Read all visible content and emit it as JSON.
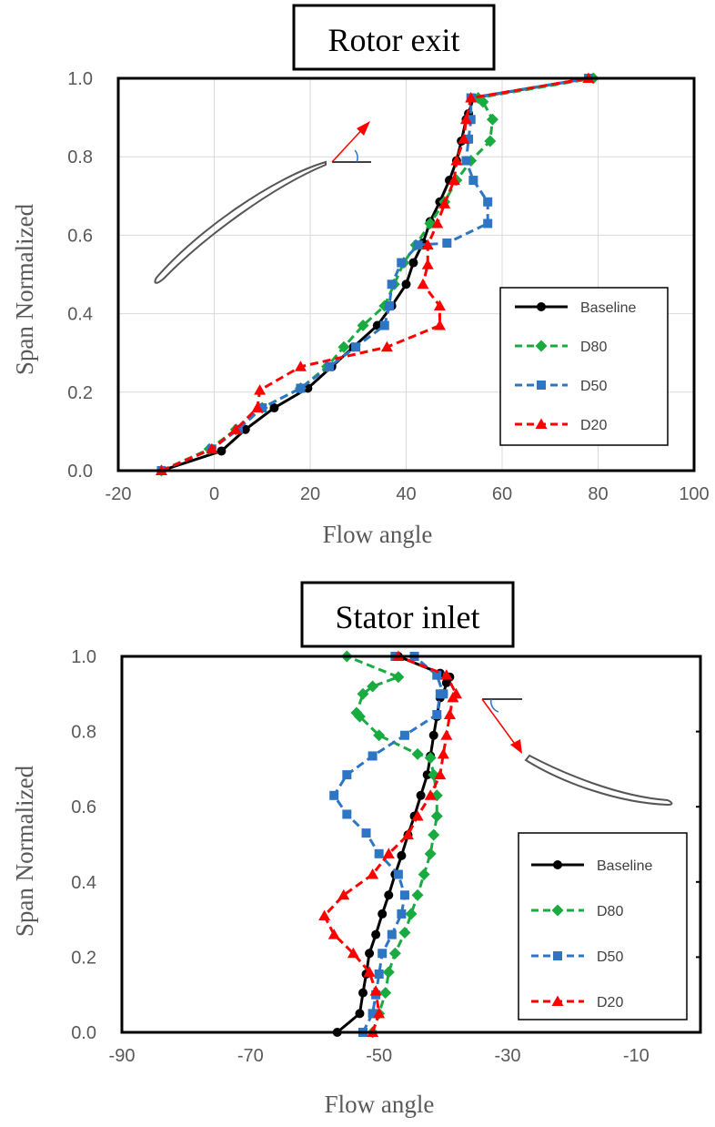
{
  "chart_data": [
    {
      "type": "line",
      "title": "Rotor exit",
      "xlabel": "Flow angle",
      "ylabel": "Span Normalized",
      "xlim": [
        -20,
        100
      ],
      "ylim": [
        0,
        1
      ],
      "xticks": [
        "-20",
        "0",
        "20",
        "40",
        "60",
        "80",
        "100"
      ],
      "yticks": [
        "0.0",
        "0.2",
        "0.4",
        "0.6",
        "0.8",
        "1.0"
      ],
      "xtick_values": [
        -20,
        0,
        20,
        40,
        60,
        80,
        100
      ],
      "ytick_values": [
        0,
        0.2,
        0.4,
        0.6,
        0.8,
        1.0
      ],
      "grid": true,
      "legend_position": "lower-right",
      "series": [
        {
          "name": "Baseline",
          "color": "#000000",
          "marker": "circle",
          "dash": "solid",
          "x": [
            -11,
            1.5,
            6.5,
            12.5,
            19.5,
            24.5,
            29,
            34,
            37,
            40,
            41.5,
            43.5,
            45,
            47,
            49,
            50.5,
            51.5,
            52.5,
            53,
            54,
            78
          ],
          "y": [
            0.0,
            0.05,
            0.105,
            0.16,
            0.21,
            0.265,
            0.315,
            0.37,
            0.42,
            0.475,
            0.53,
            0.58,
            0.635,
            0.685,
            0.74,
            0.79,
            0.84,
            0.895,
            0.91,
            0.95,
            1.0
          ]
        },
        {
          "name": "D80",
          "color": "#1aab40",
          "marker": "diamond",
          "dash": "dashed",
          "x": [
            -11,
            -1,
            4.5,
            10,
            18,
            23.5,
            27,
            31,
            35.5,
            37.5,
            39.5,
            42,
            45,
            48,
            50.5,
            53.5,
            57.5,
            58,
            56,
            55,
            79
          ],
          "y": [
            0.0,
            0.055,
            0.105,
            0.16,
            0.21,
            0.265,
            0.315,
            0.37,
            0.42,
            0.475,
            0.53,
            0.575,
            0.63,
            0.685,
            0.74,
            0.79,
            0.84,
            0.895,
            0.94,
            0.95,
            1.0
          ]
        },
        {
          "name": "D50",
          "color": "#2e75c4",
          "marker": "square",
          "dash": "dashed",
          "x": [
            -11,
            -0.5,
            5,
            10,
            18,
            24,
            29.5,
            35.5,
            36.5,
            37,
            39,
            42.5,
            48.5,
            57,
            57,
            54,
            52.5,
            53,
            53.5,
            53.5,
            78
          ],
          "y": [
            0.0,
            0.055,
            0.105,
            0.16,
            0.21,
            0.265,
            0.315,
            0.37,
            0.42,
            0.475,
            0.53,
            0.575,
            0.58,
            0.63,
            0.685,
            0.74,
            0.79,
            0.845,
            0.895,
            0.95,
            1.0
          ]
        },
        {
          "name": "D20",
          "color": "#ff0000",
          "marker": "triangle",
          "dash": "dashed",
          "x": [
            -11,
            -0.5,
            4.5,
            9,
            9.5,
            18,
            36,
            47,
            47,
            43.5,
            44.5,
            44.5,
            46.5,
            48,
            50,
            50.5,
            52,
            52.5,
            53.5,
            78
          ],
          "y": [
            0.0,
            0.055,
            0.105,
            0.16,
            0.205,
            0.265,
            0.315,
            0.37,
            0.42,
            0.475,
            0.525,
            0.575,
            0.63,
            0.68,
            0.74,
            0.79,
            0.845,
            0.895,
            0.95,
            1.0
          ]
        }
      ]
    },
    {
      "type": "line",
      "title": "Stator inlet",
      "xlabel": "Flow angle",
      "ylabel": "Span Normalized",
      "xlim": [
        -90,
        0
      ],
      "ylim": [
        0,
        1
      ],
      "xticks": [
        "-90",
        "-70",
        "-50",
        "-30",
        "-10"
      ],
      "yticks": [
        "0.0",
        "0.2",
        "0.4",
        "0.6",
        "0.8",
        "1.0"
      ],
      "xtick_values": [
        -90,
        -70,
        -50,
        -30,
        -10
      ],
      "ytick_values": [
        0,
        0.2,
        0.4,
        0.6,
        0.8,
        1.0
      ],
      "grid": false,
      "legend_position": "lower-right",
      "series": [
        {
          "name": "Baseline",
          "color": "#000000",
          "marker": "circle",
          "dash": "solid",
          "x": [
            -56.5,
            -53,
            -52.5,
            -52,
            -51.5,
            -50.5,
            -49.5,
            -48.5,
            -47.5,
            -46.5,
            -45.5,
            -44.5,
            -43.5,
            -42.5,
            -42,
            -41.5,
            -41,
            -40.5,
            -40,
            -39.5,
            -39,
            -40.5,
            -47
          ],
          "y": [
            0.0,
            0.05,
            0.105,
            0.155,
            0.21,
            0.26,
            0.315,
            0.365,
            0.42,
            0.47,
            0.525,
            0.575,
            0.63,
            0.685,
            0.735,
            0.79,
            0.84,
            0.89,
            0.9,
            0.93,
            0.945,
            0.955,
            1.0
          ]
        },
        {
          "name": "D80",
          "color": "#1aab40",
          "marker": "diamond",
          "dash": "dashed",
          "x": [
            -51,
            -50,
            -49,
            -48.5,
            -47.5,
            -46,
            -45,
            -44,
            -43,
            -42,
            -41.5,
            -41,
            -41,
            -41.5,
            -42,
            -44,
            -50,
            -53,
            -53.5,
            -52.5,
            -51,
            -47,
            -55
          ],
          "y": [
            0.0,
            0.05,
            0.105,
            0.16,
            0.21,
            0.265,
            0.315,
            0.365,
            0.42,
            0.475,
            0.525,
            0.575,
            0.63,
            0.685,
            0.73,
            0.74,
            0.79,
            0.84,
            0.85,
            0.9,
            0.92,
            0.945,
            1.0
          ]
        },
        {
          "name": "D50",
          "color": "#2e75c4",
          "marker": "square",
          "dash": "dashed",
          "x": [
            -52.5,
            -51,
            -50.5,
            -50,
            -49.5,
            -48,
            -46.5,
            -46,
            -47,
            -50,
            -52,
            -55,
            -57,
            -55,
            -51,
            -46,
            -41,
            -40.5,
            -40,
            -41,
            -44.5,
            -47.5
          ],
          "y": [
            0.0,
            0.05,
            0.1,
            0.155,
            0.21,
            0.26,
            0.315,
            0.365,
            0.42,
            0.475,
            0.53,
            0.58,
            0.63,
            0.685,
            0.735,
            0.79,
            0.845,
            0.9,
            0.9,
            0.95,
            1.0,
            1.0
          ]
        },
        {
          "name": "D20",
          "color": "#ff0000",
          "marker": "triangle",
          "dash": "dashed",
          "x": [
            -51,
            -50,
            -50.5,
            -51.5,
            -54,
            -57,
            -58.5,
            -55.5,
            -51,
            -48.5,
            -45.5,
            -44,
            -42,
            -40.5,
            -40,
            -39.5,
            -39,
            -38.5,
            -38,
            -39.5,
            -47
          ],
          "y": [
            0.0,
            0.05,
            0.11,
            0.16,
            0.21,
            0.26,
            0.31,
            0.365,
            0.42,
            0.475,
            0.525,
            0.575,
            0.63,
            0.685,
            0.74,
            0.79,
            0.845,
            0.89,
            0.9,
            0.95,
            1.0
          ]
        }
      ]
    }
  ]
}
